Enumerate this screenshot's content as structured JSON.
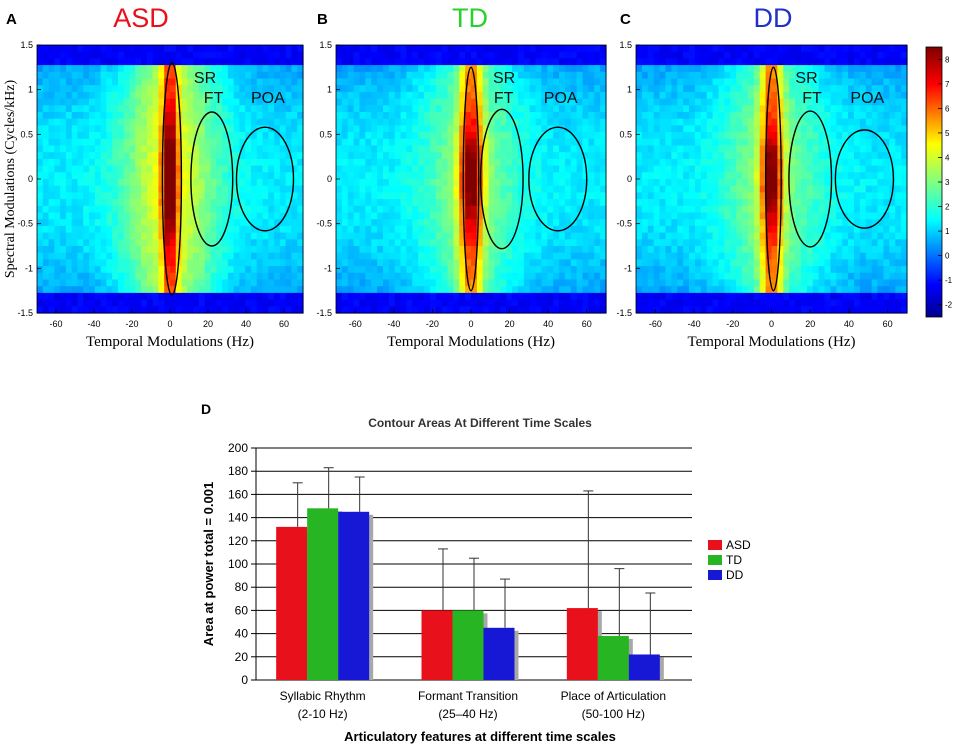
{
  "chart_data": [
    {
      "type": "heatmap",
      "panel": "A",
      "title": "ASD",
      "title_color": "#e8101a",
      "xlabel": "Temporal Modulations (Hz)",
      "ylabel": "Spectral Modulations (Cycles/kHz)",
      "xlim": [
        -70,
        70
      ],
      "ylim": [
        -1.5,
        1.5
      ],
      "xticks": [
        -60,
        -40,
        -20,
        0,
        20,
        40,
        60
      ],
      "yticks": [
        1.5,
        1,
        0.5,
        0,
        -0.5,
        -1,
        -1.5
      ],
      "ytick_labels": [
        "1.5",
        "1",
        "0.5",
        "0",
        "-0.5",
        "-1",
        "-1.5"
      ],
      "regions": [
        {
          "label": "SR",
          "center": [
            1,
            0
          ],
          "radius": [
            5,
            1.3
          ]
        },
        {
          "label": "FT",
          "center": [
            22,
            0
          ],
          "radius": [
            11,
            0.75
          ]
        },
        {
          "label": "POA",
          "center": [
            50,
            0
          ],
          "radius": [
            15,
            0.58
          ]
        }
      ]
    },
    {
      "type": "heatmap",
      "panel": "B",
      "title": "TD",
      "title_color": "#27d22a",
      "xlabel": "Temporal Modulations (Hz)",
      "xlim": [
        -70,
        70
      ],
      "ylim": [
        -1.5,
        1.5
      ],
      "xticks": [
        -60,
        -40,
        -20,
        0,
        20,
        40,
        60
      ],
      "yticks": [
        1.5,
        1,
        0.5,
        0,
        -0.5,
        -1,
        -1.5
      ],
      "ytick_labels": [
        "1.5",
        "1",
        "0.5",
        "0",
        "-0.5",
        "-1",
        "-1.5"
      ],
      "regions": [
        {
          "label": "SR",
          "center": [
            0,
            0
          ],
          "radius": [
            4,
            1.25
          ]
        },
        {
          "label": "FT",
          "center": [
            16,
            0
          ],
          "radius": [
            11,
            0.78
          ]
        },
        {
          "label": "POA",
          "center": [
            45,
            0
          ],
          "radius": [
            15,
            0.58
          ]
        }
      ]
    },
    {
      "type": "heatmap",
      "panel": "C",
      "title": "DD",
      "title_color": "#2030c8",
      "xlabel": "Temporal Modulations (Hz)",
      "xlim": [
        -70,
        70
      ],
      "ylim": [
        -1.5,
        1.5
      ],
      "xticks": [
        -60,
        -40,
        -20,
        0,
        20,
        40,
        60
      ],
      "yticks": [
        1.5,
        1,
        0.5,
        0,
        -0.5,
        -1,
        -1.5
      ],
      "ytick_labels": [
        "1.5",
        "1",
        "0.5",
        "0",
        "-0.5",
        "-1",
        "-1.5"
      ],
      "regions": [
        {
          "label": "SR",
          "center": [
            1,
            0
          ],
          "radius": [
            4,
            1.25
          ]
        },
        {
          "label": "FT",
          "center": [
            20,
            0
          ],
          "radius": [
            11,
            0.76
          ]
        },
        {
          "label": "POA",
          "center": [
            48,
            0
          ],
          "radius": [
            15,
            0.55
          ]
        }
      ],
      "colorbar": {
        "range": [
          -2.5,
          8.5
        ],
        "ticks": [
          8,
          7,
          6,
          5,
          4,
          3,
          2,
          1,
          0,
          -1,
          -2
        ],
        "tick_labels": [
          "8",
          "7",
          "6",
          "5",
          "4",
          "3",
          "2",
          "1",
          "0",
          "-1",
          "-2"
        ]
      }
    },
    {
      "type": "bar",
      "panel": "D",
      "title": "Contour Areas At Different Time Scales",
      "xlabel": "Articulatory features at different time scales",
      "ylabel": "Area at power total = 0.001",
      "categories": [
        "Syllabic Rhythm",
        "Formant Transition",
        "Place of Articulation"
      ],
      "category_sublabels": [
        "(2-10 Hz)",
        "(25–40 Hz)",
        "(50-100 Hz)"
      ],
      "ylim": [
        0,
        200
      ],
      "yticks": [
        0,
        20,
        40,
        60,
        80,
        100,
        120,
        140,
        160,
        180,
        200
      ],
      "legend_position": "right",
      "series": [
        {
          "name": "ASD",
          "color": "#e8101a",
          "values": [
            132,
            60,
            62
          ],
          "errors": [
            38,
            53,
            101
          ]
        },
        {
          "name": "TD",
          "color": "#27b524",
          "values": [
            148,
            60,
            38
          ],
          "errors": [
            35,
            45,
            58
          ]
        },
        {
          "name": "DD",
          "color": "#1717d6",
          "values": [
            145,
            45,
            22
          ],
          "errors": [
            30,
            42,
            53
          ]
        }
      ]
    }
  ]
}
